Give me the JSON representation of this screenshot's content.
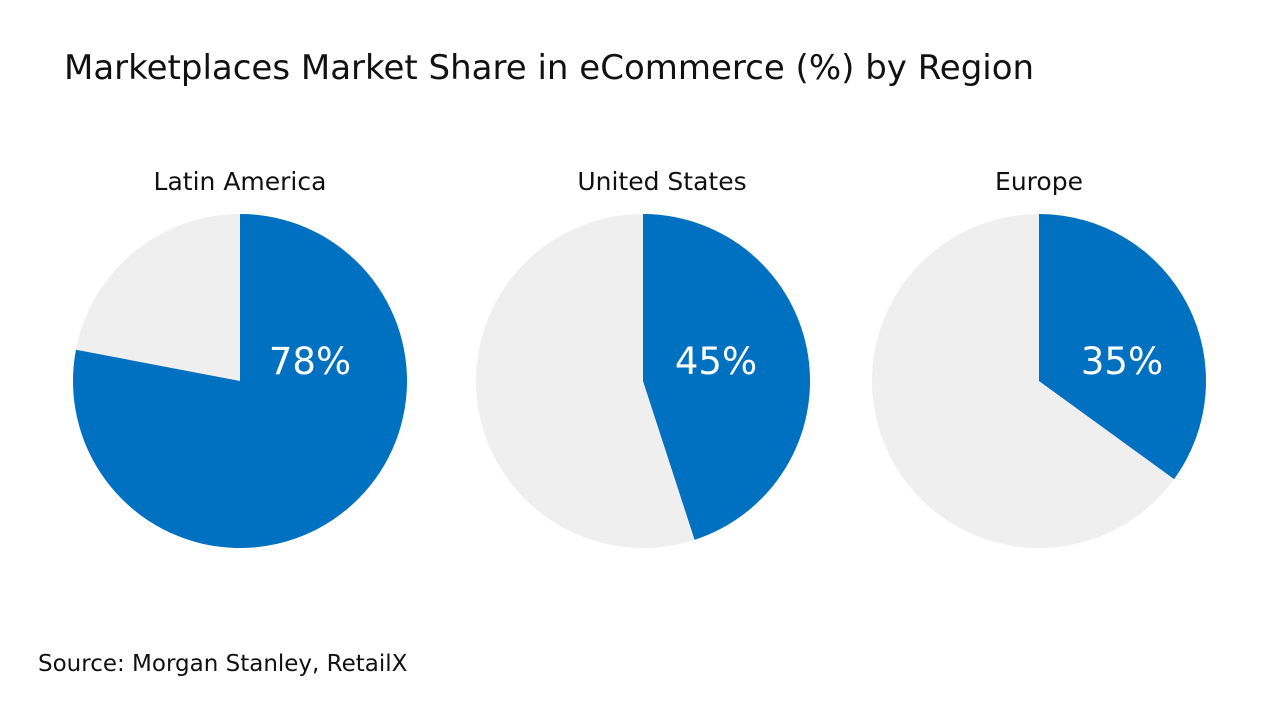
{
  "chart_data": {
    "type": "pie",
    "title": "Marketplaces Market Share in eCommerce (%) by Region",
    "unit": "%",
    "colors": {
      "share": "#0070c0",
      "remainder": "#efefef",
      "label": "#ffffff"
    },
    "pies": [
      {
        "name": "Latin America",
        "value": 78,
        "label": "78%"
      },
      {
        "name": "United States",
        "value": 45,
        "label": "45%"
      },
      {
        "name": "Europe",
        "value": 35,
        "label": "35%"
      }
    ],
    "source": "Source: Morgan Stanley, RetailX"
  }
}
